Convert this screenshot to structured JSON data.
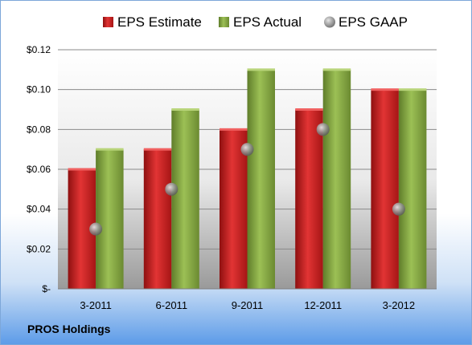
{
  "company": "PROS Holdings",
  "chart_data": {
    "type": "bar",
    "categories": [
      "3-2011",
      "6-2011",
      "9-2011",
      "12-2011",
      "3-2012"
    ],
    "series": [
      {
        "name": "EPS Estimate",
        "values": [
          0.06,
          0.07,
          0.08,
          0.09,
          0.1
        ],
        "color": "#d42020"
      },
      {
        "name": "EPS Actual",
        "values": [
          0.07,
          0.09,
          0.11,
          0.11,
          0.1
        ],
        "color": "#8fb04a"
      },
      {
        "name": "EPS GAAP",
        "values": [
          0.03,
          0.05,
          0.07,
          0.08,
          0.04
        ],
        "color": "#a0a0a0",
        "marker": "sphere"
      }
    ],
    "ylim": [
      0,
      0.12
    ],
    "yticks": [
      0,
      0.02,
      0.04,
      0.06,
      0.08,
      0.1,
      0.12
    ],
    "ytick_labels": [
      "$-",
      "$0.02",
      "$0.04",
      "$0.06",
      "$0.08",
      "$0.10",
      "$0.12"
    ],
    "grid": true,
    "legend_position": "top"
  }
}
